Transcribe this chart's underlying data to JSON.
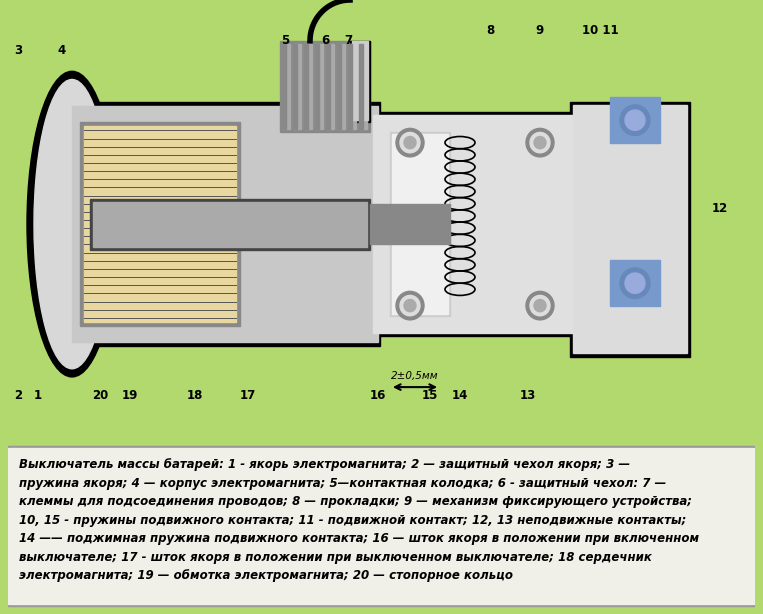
{
  "bg_color": "#b2d96e",
  "text_box_color": "#f0f0e8",
  "text_box_border": "#888888",
  "title_text": "Выключатель массы батарей: 1 - якорь электромагнита; 2 — защитный чехол якоря; 3 —\nпружина якоря; 4 — корпус электромагнита; 5—контактная колодка; 6 - защитный чехол: 7 —\nклеммы для подсоединения проводов; 8 — прокладки; 9 — механизм фиксирующего устройства;\n10, 15 - пружины подвижного контакта; 11 - подвижной контакт; 12, 13 неподвижные контакты;\n14 —— поджимная пружина подвижного контакта; 16 — шток якоря в положении при включенном\nвыключателе; 17 - шток якоря в положении при выключенном выключателе; 18 сердечник\nэлектромагнита; 19 — обмотка электромагнита; 20 — стопорное кольцо",
  "fig_width": 7.63,
  "fig_height": 6.14,
  "dpi": 100,
  "image_path": null,
  "diagram_bg": "#b2d96e",
  "note_font_size": 8.5,
  "note_font_family": "DejaVu Sans",
  "note_italic": true,
  "note_bold": true
}
